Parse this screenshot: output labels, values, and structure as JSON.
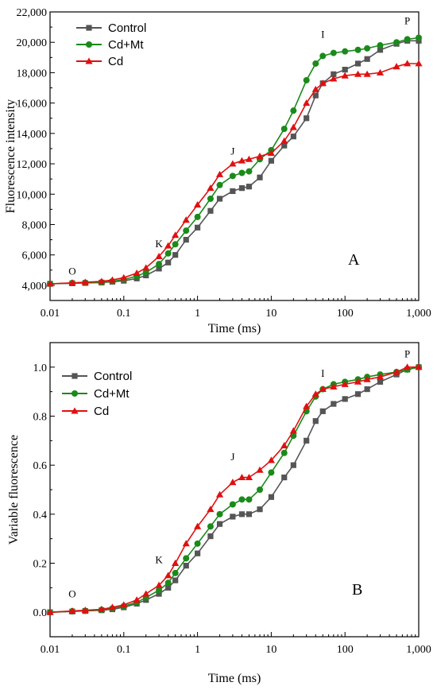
{
  "chart_data": [
    {
      "type": "line",
      "panel_label": "A",
      "xlabel": "Time (ms)",
      "ylabel": "Fluorescence intensity",
      "xscale": "log",
      "xlim": [
        0.01,
        1000
      ],
      "ylim": [
        3000,
        22000
      ],
      "x_tick_labels": [
        "0.01",
        "0.1",
        "1",
        "10",
        "100",
        "1,000"
      ],
      "y_ticks": [
        4000,
        6000,
        8000,
        10000,
        12000,
        14000,
        16000,
        18000,
        20000,
        22000
      ],
      "y_tick_labels": [
        "4,000",
        "6,000",
        "8,000",
        "10,000",
        "12,000",
        "14,000",
        "16,000",
        "18,000",
        "20,000",
        "22,000"
      ],
      "legend_position": "top-left",
      "annotations": [
        {
          "text": "O",
          "x": 0.02,
          "y": 4700
        },
        {
          "text": "K",
          "x": 0.3,
          "y": 6500
        },
        {
          "text": "J",
          "x": 3,
          "y": 12600
        },
        {
          "text": "I",
          "x": 50,
          "y": 20300
        },
        {
          "text": "P",
          "x": 700,
          "y": 21200
        }
      ],
      "x": [
        0.01,
        0.02,
        0.03,
        0.05,
        0.07,
        0.1,
        0.15,
        0.2,
        0.3,
        0.4,
        0.5,
        0.7,
        1,
        1.5,
        2,
        3,
        4,
        5,
        7,
        10,
        15,
        20,
        30,
        40,
        50,
        70,
        100,
        150,
        200,
        300,
        500,
        700,
        1000
      ],
      "series": [
        {
          "name": "Control",
          "color": "#555555",
          "marker": "square",
          "values": [
            4100,
            4130,
            4150,
            4180,
            4230,
            4300,
            4450,
            4650,
            5100,
            5500,
            6000,
            7000,
            7800,
            8900,
            9700,
            10200,
            10400,
            10500,
            11100,
            12200,
            13200,
            13800,
            15000,
            16500,
            17300,
            17900,
            18200,
            18600,
            18900,
            19500,
            19900,
            20100,
            20100
          ]
        },
        {
          "name": "Cd+Mt",
          "color": "#1a8a1a",
          "marker": "circle",
          "values": [
            4100,
            4150,
            4170,
            4200,
            4260,
            4380,
            4600,
            4850,
            5400,
            6100,
            6700,
            7600,
            8500,
            9700,
            10600,
            11200,
            11400,
            11500,
            12300,
            12900,
            14300,
            15500,
            17500,
            18600,
            19100,
            19300,
            19400,
            19500,
            19600,
            19800,
            20000,
            20200,
            20300
          ]
        },
        {
          "name": "Cd",
          "color": "#e01010",
          "marker": "triangle",
          "values": [
            4100,
            4160,
            4200,
            4260,
            4350,
            4500,
            4800,
            5150,
            5900,
            6600,
            7300,
            8300,
            9300,
            10400,
            11300,
            12000,
            12200,
            12300,
            12500,
            12700,
            13500,
            14400,
            16000,
            16900,
            17300,
            17600,
            17800,
            17900,
            17900,
            18000,
            18400,
            18600,
            18600
          ]
        }
      ]
    },
    {
      "type": "line",
      "panel_label": "B",
      "xlabel": "Time (ms)",
      "ylabel": "Variable fluorescence",
      "xscale": "log",
      "xlim": [
        0.01,
        1000
      ],
      "ylim": [
        -0.1,
        1.1
      ],
      "x_tick_labels": [
        "0.01",
        "0.1",
        "1",
        "10",
        "100",
        "1,000"
      ],
      "y_ticks": [
        0.0,
        0.2,
        0.4,
        0.6,
        0.8,
        1.0
      ],
      "y_tick_labels": [
        "0.0",
        "0.2",
        "0.4",
        "0.6",
        "0.8",
        "1.0"
      ],
      "legend_position": "upper-left",
      "annotations": [
        {
          "text": "O",
          "x": 0.02,
          "y": 0.06
        },
        {
          "text": "K",
          "x": 0.3,
          "y": 0.2
        },
        {
          "text": "J",
          "x": 3,
          "y": 0.62
        },
        {
          "text": "I",
          "x": 50,
          "y": 0.96
        },
        {
          "text": "P",
          "x": 700,
          "y": 1.04
        }
      ],
      "x": [
        0.01,
        0.02,
        0.03,
        0.05,
        0.07,
        0.1,
        0.15,
        0.2,
        0.3,
        0.4,
        0.5,
        0.7,
        1,
        1.5,
        2,
        3,
        4,
        5,
        7,
        10,
        15,
        20,
        30,
        40,
        50,
        70,
        100,
        150,
        200,
        300,
        500,
        700,
        1000
      ],
      "series": [
        {
          "name": "Control",
          "color": "#555555",
          "marker": "square",
          "values": [
            0.0,
            0.003,
            0.005,
            0.008,
            0.012,
            0.02,
            0.035,
            0.05,
            0.075,
            0.1,
            0.13,
            0.19,
            0.24,
            0.31,
            0.36,
            0.39,
            0.4,
            0.4,
            0.42,
            0.47,
            0.55,
            0.6,
            0.7,
            0.78,
            0.82,
            0.85,
            0.87,
            0.89,
            0.91,
            0.94,
            0.97,
            0.99,
            1.0
          ]
        },
        {
          "name": "Cd+Mt",
          "color": "#1a8a1a",
          "marker": "circle",
          "values": [
            0.0,
            0.004,
            0.006,
            0.01,
            0.015,
            0.025,
            0.04,
            0.06,
            0.09,
            0.12,
            0.16,
            0.22,
            0.28,
            0.35,
            0.4,
            0.44,
            0.46,
            0.46,
            0.5,
            0.57,
            0.65,
            0.72,
            0.82,
            0.88,
            0.91,
            0.93,
            0.94,
            0.95,
            0.96,
            0.97,
            0.98,
            0.99,
            1.0
          ]
        },
        {
          "name": "Cd",
          "color": "#e01010",
          "marker": "triangle",
          "values": [
            0.0,
            0.005,
            0.008,
            0.012,
            0.02,
            0.03,
            0.05,
            0.075,
            0.11,
            0.15,
            0.2,
            0.28,
            0.35,
            0.42,
            0.48,
            0.53,
            0.55,
            0.55,
            0.58,
            0.62,
            0.68,
            0.74,
            0.84,
            0.89,
            0.91,
            0.92,
            0.93,
            0.94,
            0.95,
            0.96,
            0.98,
            1.0,
            1.0
          ]
        }
      ]
    }
  ]
}
